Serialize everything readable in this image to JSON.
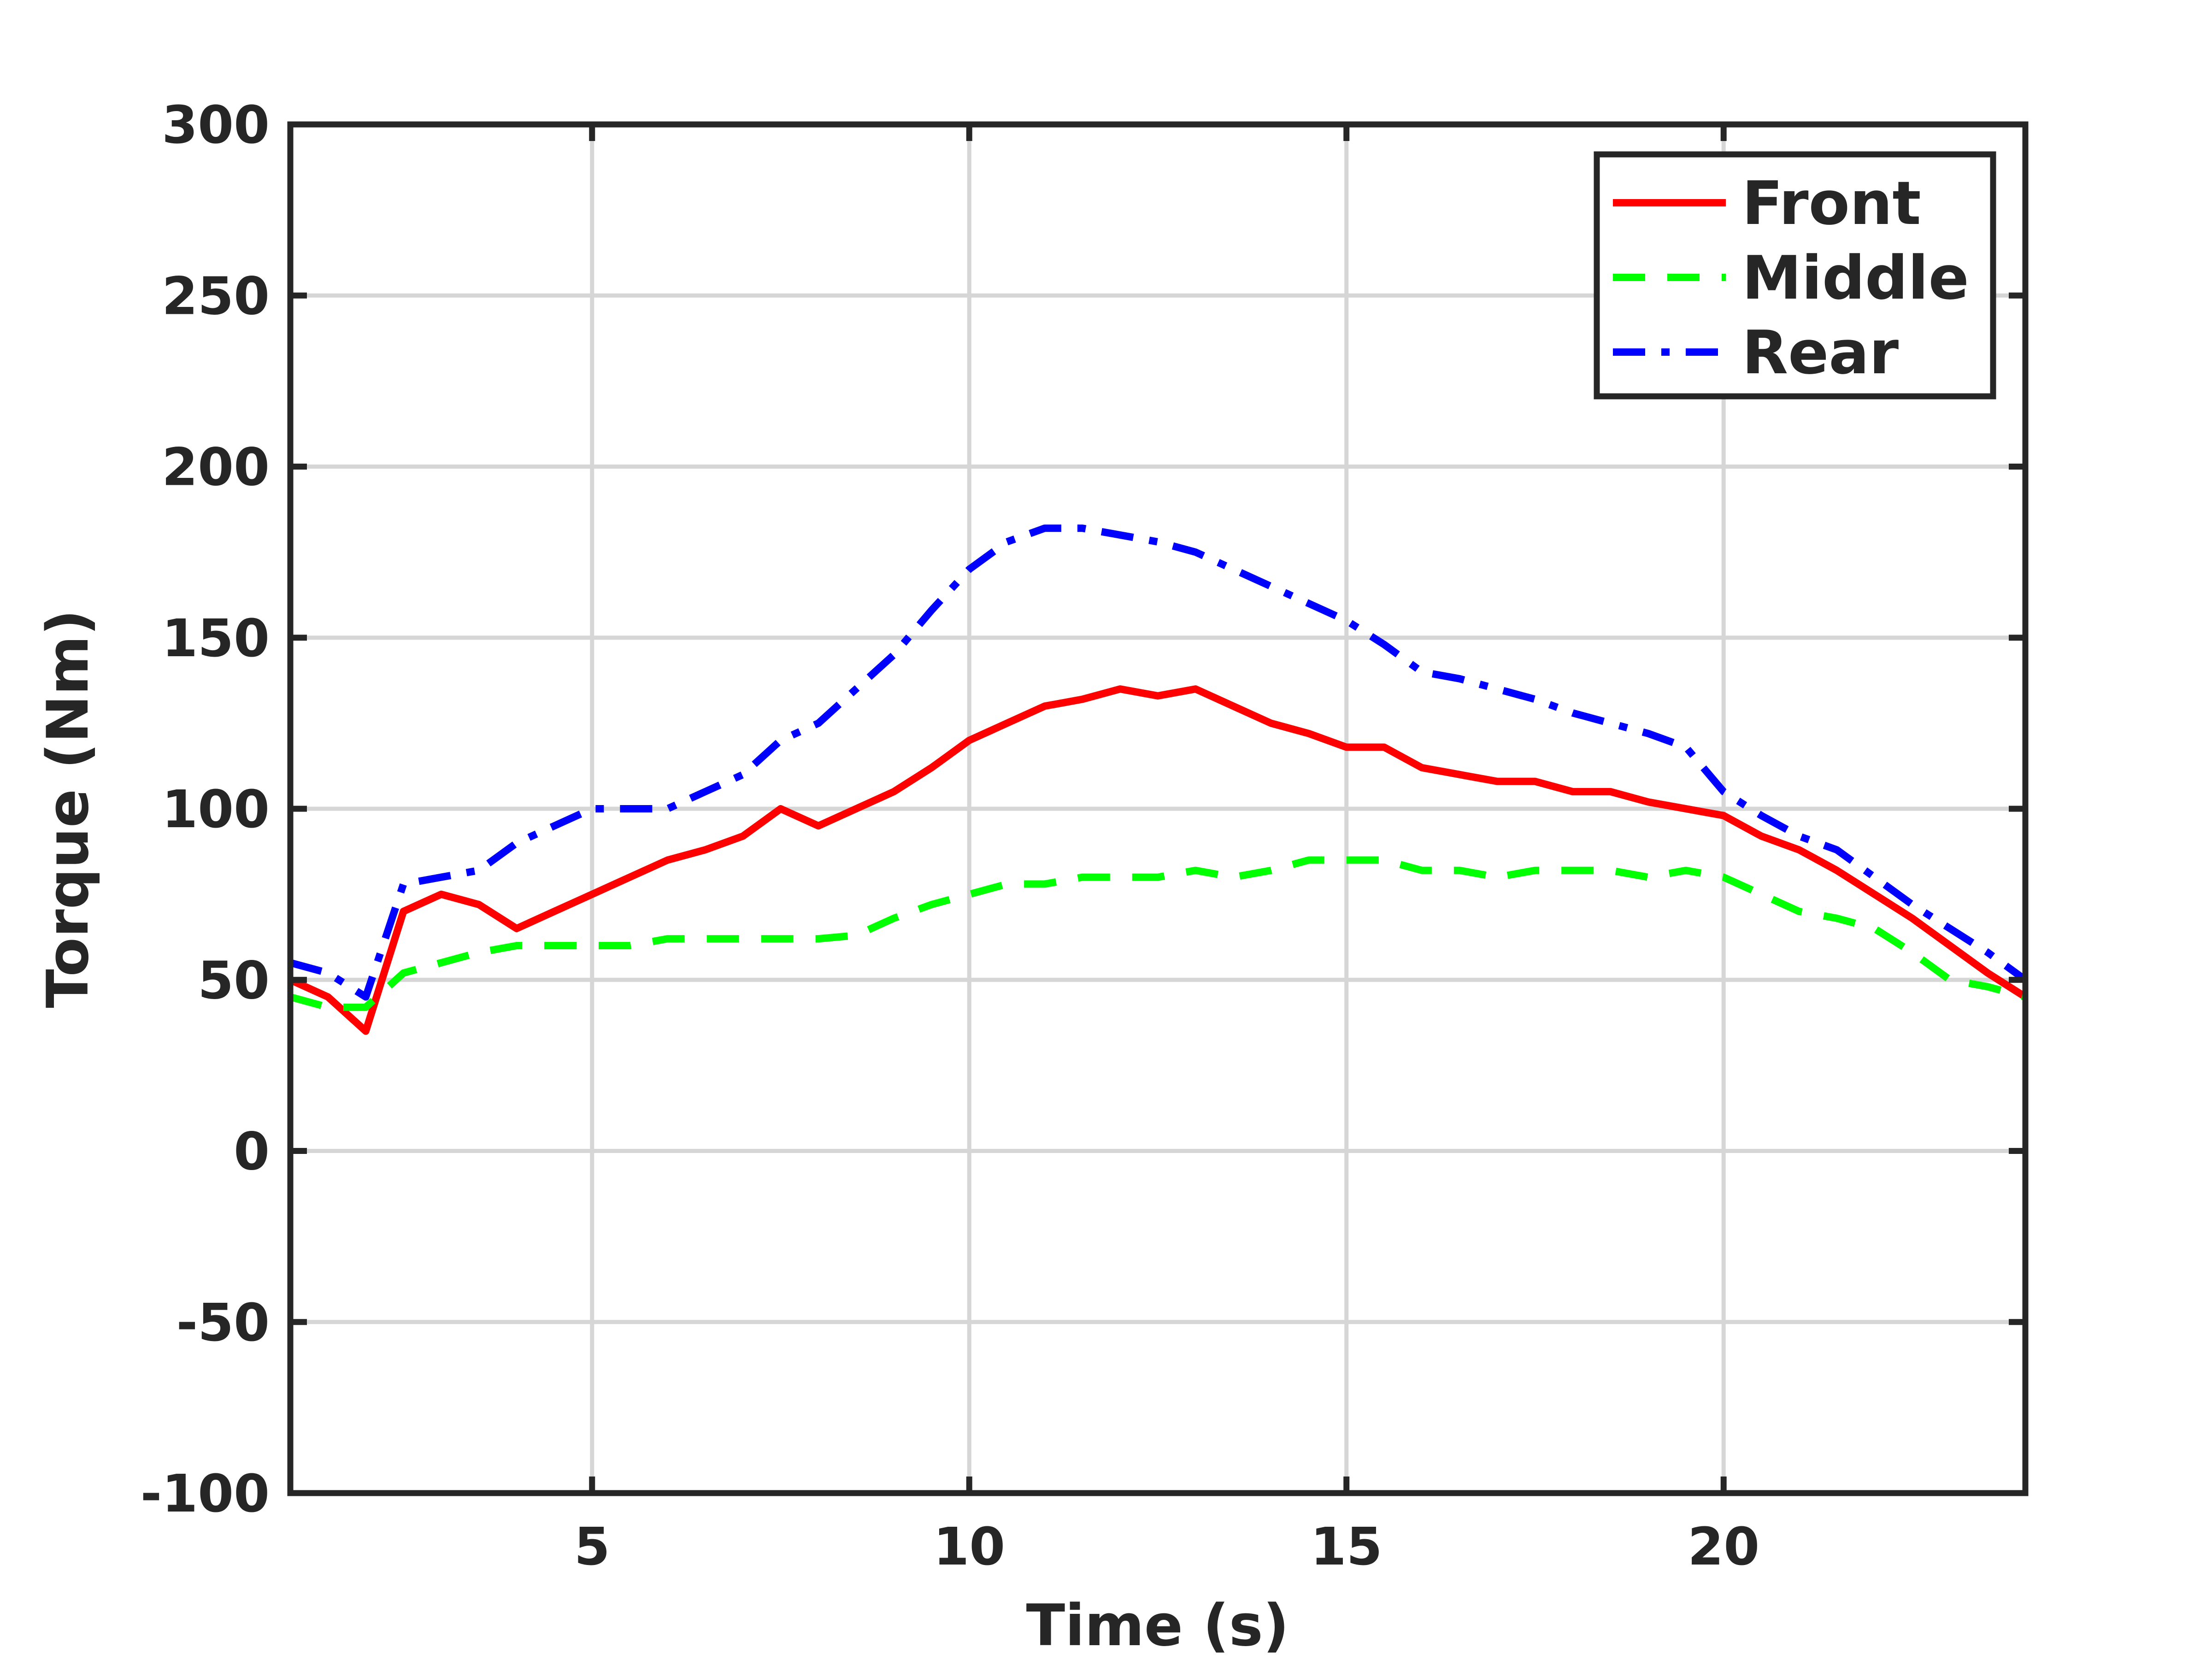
{
  "chart_data": {
    "type": "line",
    "xlabel": "Time (s)",
    "ylabel": "Torque (Nm)",
    "xlim": [
      1,
      24
    ],
    "ylim": [
      -100,
      300
    ],
    "xticks": [
      5,
      10,
      15,
      20
    ],
    "yticks": [
      -100,
      -50,
      0,
      50,
      100,
      150,
      200,
      250,
      300
    ],
    "grid": true,
    "legend_position": "top-right",
    "x": [
      1.0,
      1.5,
      2.0,
      2.5,
      3.0,
      3.5,
      4.0,
      4.5,
      5.0,
      5.5,
      6.0,
      6.5,
      7.0,
      7.5,
      8.0,
      8.5,
      9.0,
      9.5,
      10.0,
      10.5,
      11.0,
      11.5,
      12.0,
      12.5,
      13.0,
      13.5,
      14.0,
      14.5,
      15.0,
      15.5,
      16.0,
      16.5,
      17.0,
      17.5,
      18.0,
      18.5,
      19.0,
      19.5,
      20.0,
      20.5,
      21.0,
      21.5,
      22.0,
      22.5,
      23.0,
      23.5,
      24.0
    ],
    "series": [
      {
        "name": "Front",
        "color": "#ff0000",
        "style": "solid",
        "values": [
          50,
          45,
          35,
          70,
          75,
          72,
          65,
          70,
          75,
          80,
          85,
          88,
          92,
          100,
          95,
          100,
          105,
          112,
          120,
          125,
          130,
          132,
          135,
          133,
          135,
          130,
          125,
          122,
          118,
          118,
          112,
          110,
          108,
          108,
          105,
          105,
          102,
          100,
          98,
          92,
          88,
          82,
          75,
          68,
          60,
          52,
          45
        ]
      },
      {
        "name": "Middle",
        "color": "#00ff00",
        "style": "dashed",
        "values": [
          45,
          42,
          42,
          52,
          55,
          58,
          60,
          60,
          60,
          60,
          62,
          62,
          62,
          62,
          62,
          63,
          68,
          72,
          75,
          78,
          78,
          80,
          80,
          80,
          82,
          80,
          82,
          85,
          85,
          85,
          82,
          82,
          80,
          82,
          82,
          82,
          80,
          82,
          80,
          75,
          70,
          68,
          65,
          58,
          50,
          48,
          45
        ]
      },
      {
        "name": "Rear",
        "color": "#0000ff",
        "style": "dashdot",
        "values": [
          55,
          52,
          45,
          78,
          80,
          82,
          90,
          95,
          100,
          100,
          100,
          105,
          110,
          120,
          125,
          135,
          145,
          158,
          170,
          178,
          182,
          182,
          180,
          178,
          175,
          170,
          165,
          160,
          155,
          148,
          140,
          138,
          135,
          132,
          128,
          125,
          122,
          118,
          105,
          98,
          92,
          88,
          80,
          72,
          65,
          58,
          50
        ]
      }
    ]
  }
}
